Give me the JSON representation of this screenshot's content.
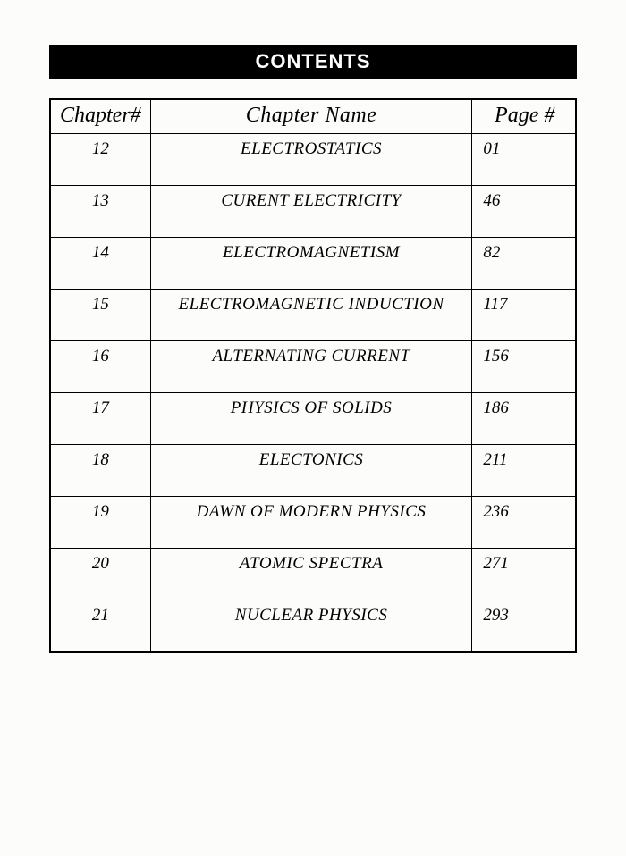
{
  "banner": "CONTENTS",
  "columns": [
    "Chapter#",
    "Chapter Name",
    "Page #"
  ],
  "rows": [
    {
      "ch": "12",
      "name": "ELECTROSTATICS",
      "page": "01"
    },
    {
      "ch": "13",
      "name": "CURENT ELECTRICITY",
      "page": "46"
    },
    {
      "ch": "14",
      "name": "ELECTROMAGNETISM",
      "page": "82"
    },
    {
      "ch": "15",
      "name": "ELECTROMAGNETIC INDUCTION",
      "page": "117"
    },
    {
      "ch": "16",
      "name": "ALTERNATING CURRENT",
      "page": "156"
    },
    {
      "ch": "17",
      "name": "PHYSICS OF SOLIDS",
      "page": "186"
    },
    {
      "ch": "18",
      "name": "ELECTONICS",
      "page": "211"
    },
    {
      "ch": "19",
      "name": "DAWN OF MODERN PHYSICS",
      "page": "236"
    },
    {
      "ch": "20",
      "name": "ATOMIC SPECTRA",
      "page": "271"
    },
    {
      "ch": "21",
      "name": "NUCLEAR PHYSICS",
      "page": "293"
    }
  ],
  "style": {
    "banner_bg": "#000000",
    "banner_fg": "#ffffff",
    "banner_fontsize": 22,
    "page_bg": "#fcfcfa",
    "border_color": "#000000",
    "header_fontsize": 24,
    "cell_fontsize": 19,
    "col_widths_pct": [
      18,
      62,
      20
    ]
  }
}
